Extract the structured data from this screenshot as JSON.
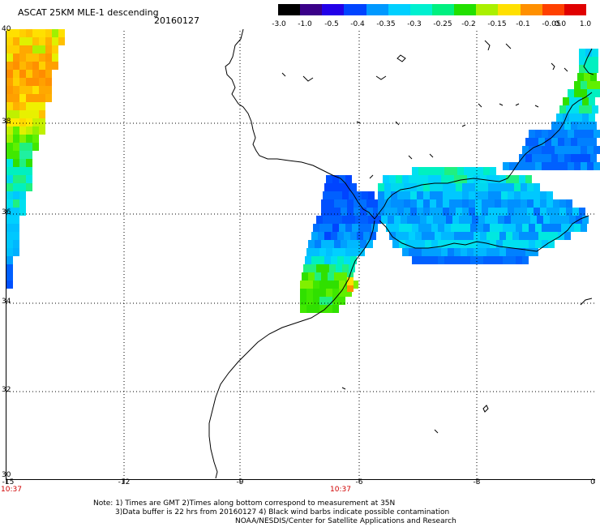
{
  "header": {
    "title": "ASCAT 25KM MLE-1 descending",
    "date": "20160127"
  },
  "colorbar": {
    "labels": [
      "-3.0",
      "-1.0",
      "-0.5",
      "-0.4",
      "-0.35",
      "-0.3",
      "-0.25",
      "-0.2",
      "-0.15",
      "-0.1",
      "-0.05",
      "0.0",
      "1.0"
    ],
    "colors": [
      "#000000",
      "#3a0088",
      "#2200e8",
      "#0044ff",
      "#0099ff",
      "#00d0ff",
      "#00f0d0",
      "#00f080",
      "#22e000",
      "#aaf000",
      "#ffe000",
      "#ff9000",
      "#ff4000",
      "#e00000"
    ]
  },
  "axes": {
    "lat_labels": [
      "40",
      "38",
      "36",
      "34",
      "32",
      "30"
    ],
    "lon_labels": [
      "-15",
      "-12",
      "-9",
      "-6",
      "-3",
      "0"
    ],
    "time_labels": [
      "10:37",
      "10:37"
    ]
  },
  "footer": {
    "line1": "Note: 1) Times are GMT 2)Times along bottom correspond to measurement at 35N",
    "line2": "3)Data buffer is 22 hrs from 20160127 4) Black wind barbs indicate possible contamination",
    "line3": "NOAA/NESDIS/Center for Satellite Applications and Research"
  },
  "colors": {
    "grid": "#000000",
    "coast": "#000000",
    "time_label": "#d00000"
  }
}
